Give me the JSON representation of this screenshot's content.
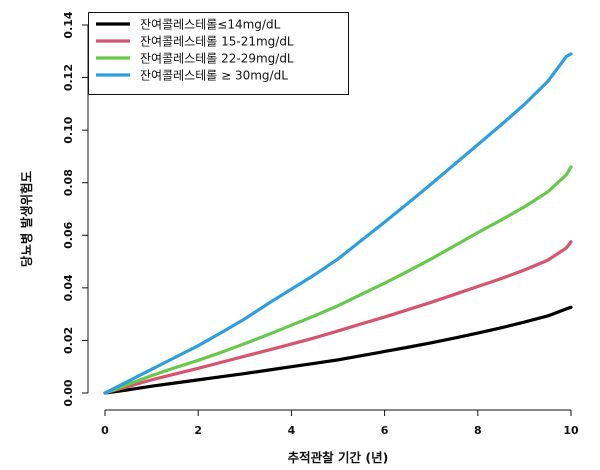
{
  "chart_data": {
    "type": "line",
    "xlabel": "추적관찰 기간 (년)",
    "ylabel": "당뇨병 발생위험도",
    "xlim": [
      0,
      10
    ],
    "ylim": [
      0,
      0.14
    ],
    "x_ticks": [
      "0",
      "2",
      "4",
      "6",
      "8",
      "10"
    ],
    "y_ticks": [
      "0.00",
      "0.02",
      "0.04",
      "0.06",
      "0.08",
      "0.10",
      "0.12",
      "0.14"
    ],
    "legend_position": "top-left",
    "grid": false,
    "x": [
      0,
      0.5,
      1,
      1.5,
      2,
      2.5,
      3,
      3.5,
      4,
      4.5,
      5,
      5.5,
      6,
      6.5,
      7,
      7.5,
      8,
      8.5,
      9,
      9.5,
      9.9,
      10
    ],
    "series": [
      {
        "name": "잔여콜레스테롤≤14mg/dL",
        "color": "#000000",
        "values": [
          0,
          0.0012,
          0.0026,
          0.0038,
          0.005,
          0.0062,
          0.0074,
          0.0087,
          0.01,
          0.0113,
          0.0126,
          0.0142,
          0.0158,
          0.0174,
          0.0191,
          0.0209,
          0.0228,
          0.0248,
          0.027,
          0.0293,
          0.032,
          0.0326
        ]
      },
      {
        "name": "잔여콜레스테롤 15-21mg/dL",
        "color": "#d6546f",
        "values": [
          0,
          0.0025,
          0.005,
          0.0072,
          0.0094,
          0.0117,
          0.014,
          0.0163,
          0.0186,
          0.021,
          0.0236,
          0.0263,
          0.0289,
          0.0317,
          0.0345,
          0.0375,
          0.0405,
          0.0435,
          0.0468,
          0.0505,
          0.0552,
          0.0575
        ]
      },
      {
        "name": "잔여콜레스테롤 22-29mg/dL",
        "color": "#66c94a",
        "values": [
          0,
          0.0033,
          0.0066,
          0.0096,
          0.0124,
          0.0155,
          0.0188,
          0.0222,
          0.0258,
          0.0294,
          0.0332,
          0.0375,
          0.0418,
          0.0463,
          0.051,
          0.056,
          0.061,
          0.0658,
          0.0708,
          0.0765,
          0.083,
          0.086
        ]
      },
      {
        "name": "잔여콜레스테롤 ≥ 30mg/dL",
        "color": "#2f9ee0",
        "values": [
          0,
          0.0045,
          0.009,
          0.0135,
          0.018,
          0.023,
          0.0282,
          0.034,
          0.0395,
          0.045,
          0.051,
          0.058,
          0.065,
          0.0722,
          0.0795,
          0.087,
          0.0945,
          0.102,
          0.1098,
          0.1185,
          0.128,
          0.129
        ]
      }
    ]
  }
}
